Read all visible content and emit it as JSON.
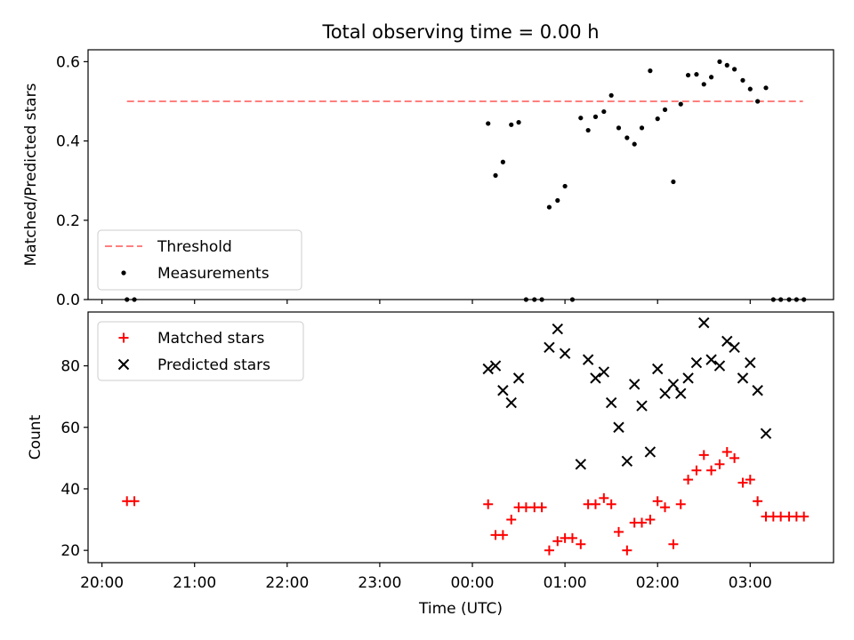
{
  "title": "Total observing time = 0.00 h",
  "colors": {
    "threshold": "#ff7f7f",
    "measurements": "#000000",
    "matched": "#ff0000",
    "predicted": "#000000"
  },
  "chart_data": [
    {
      "type": "scatter",
      "panel": "top",
      "title": "Total observing time = 0.00 h",
      "xlabel": "",
      "ylabel": "Matched/Predicted stars",
      "xlim_hours": [
        19.85,
        27.9
      ],
      "ylim": [
        0,
        0.63
      ],
      "yticks": [
        0.0,
        0.2,
        0.4,
        0.6
      ],
      "ytick_labels": [
        "0.0",
        "0.2",
        "0.4",
        "0.6"
      ],
      "legend": "lower-left",
      "grid": false,
      "series": [
        {
          "name": "Threshold",
          "style": "dashed-line",
          "color": "#ff7f7f",
          "x": [
            20.27,
            27.57
          ],
          "y": [
            0.5,
            0.5
          ]
        },
        {
          "name": "Measurements",
          "style": "dot",
          "color": "#000000",
          "x": [
            20.27,
            20.35,
            24.17,
            24.25,
            24.33,
            24.42,
            24.5,
            24.58,
            24.67,
            24.75,
            24.83,
            24.92,
            25.0,
            25.08,
            25.17,
            25.25,
            25.33,
            25.42,
            25.5,
            25.58,
            25.67,
            25.75,
            25.83,
            25.92,
            26.0,
            26.08,
            26.17,
            26.25,
            26.33,
            26.42,
            26.5,
            26.58,
            26.67,
            26.75,
            26.83,
            26.92,
            27.0,
            27.08,
            27.17,
            27.25,
            27.33,
            27.42,
            27.5,
            27.58
          ],
          "y": [
            0.0,
            0.0,
            0.444,
            0.313,
            0.347,
            0.441,
            0.447,
            0.0,
            0.0,
            0.0,
            0.233,
            0.25,
            0.286,
            0.0,
            0.458,
            0.427,
            0.461,
            0.474,
            0.515,
            0.433,
            0.408,
            0.392,
            0.433,
            0.577,
            0.456,
            0.479,
            0.297,
            0.493,
            0.566,
            0.568,
            0.543,
            0.561,
            0.6,
            0.591,
            0.581,
            0.553,
            0.531,
            0.5,
            0.534,
            0.0,
            0.0,
            0.0,
            0.0,
            0.0
          ]
        }
      ]
    },
    {
      "type": "scatter",
      "panel": "bottom",
      "xlabel": "Time (UTC)",
      "ylabel": "Count",
      "xlim_hours": [
        19.85,
        27.9
      ],
      "xticks_hours": [
        20,
        21,
        22,
        23,
        24,
        25,
        26,
        27
      ],
      "xtick_labels": [
        "20:00",
        "21:00",
        "22:00",
        "23:00",
        "00:00",
        "01:00",
        "02:00",
        "03:00"
      ],
      "ylim": [
        16,
        97.5
      ],
      "yticks": [
        20,
        40,
        60,
        80
      ],
      "ytick_labels": [
        "20",
        "40",
        "60",
        "80"
      ],
      "legend": "upper-left",
      "grid": false,
      "series": [
        {
          "name": "Matched stars",
          "marker": "plus",
          "color": "#ff0000",
          "x": [
            20.27,
            20.35,
            24.17,
            24.25,
            24.33,
            24.42,
            24.5,
            24.58,
            24.67,
            24.75,
            24.83,
            24.92,
            25.0,
            25.08,
            25.17,
            25.25,
            25.33,
            25.42,
            25.5,
            25.58,
            25.67,
            25.75,
            25.83,
            25.92,
            26.0,
            26.08,
            26.17,
            26.25,
            26.33,
            26.42,
            26.5,
            26.58,
            26.67,
            26.75,
            26.83,
            26.92,
            27.0,
            27.08,
            27.17,
            27.25,
            27.33,
            27.42,
            27.5,
            27.58
          ],
          "y": [
            36,
            36,
            35,
            25,
            25,
            30,
            34,
            34,
            34,
            34,
            20,
            23,
            24,
            24,
            22,
            35,
            35,
            37,
            35,
            26,
            20,
            29,
            29,
            30,
            36,
            34,
            22,
            35,
            43,
            46,
            51,
            46,
            48,
            52,
            50,
            42,
            43,
            36,
            31,
            31,
            31,
            31,
            31,
            31
          ]
        },
        {
          "name": "Predicted stars",
          "marker": "x",
          "color": "#000000",
          "x": [
            24.17,
            24.25,
            24.33,
            24.42,
            24.5,
            24.83,
            24.92,
            25.0,
            25.17,
            25.25,
            25.33,
            25.42,
            25.5,
            25.58,
            25.67,
            25.75,
            25.83,
            25.92,
            26.0,
            26.08,
            26.17,
            26.25,
            26.33,
            26.42,
            26.5,
            26.58,
            26.67,
            26.75,
            26.83,
            26.92,
            27.0,
            27.08,
            27.17
          ],
          "y": [
            79,
            80,
            72,
            68,
            76,
            86,
            92,
            84,
            48,
            82,
            76,
            78,
            68,
            60,
            49,
            74,
            67,
            52,
            79,
            71,
            74,
            71,
            76,
            81,
            94,
            82,
            80,
            88,
            86,
            76,
            81,
            72,
            58
          ]
        }
      ]
    }
  ]
}
